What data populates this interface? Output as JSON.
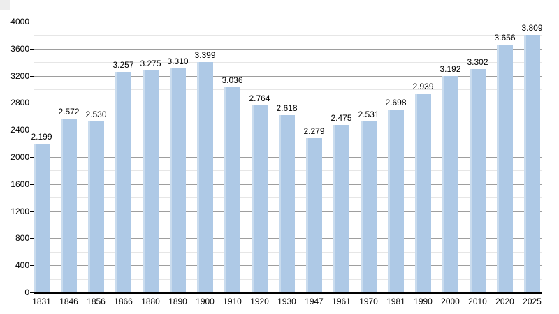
{
  "chart_data": {
    "type": "bar",
    "title": "",
    "xlabel": "",
    "ylabel": "",
    "categories": [
      "1831",
      "1846",
      "1856",
      "1866",
      "1880",
      "1890",
      "1900",
      "1910",
      "1920",
      "1930",
      "1947",
      "1961",
      "1970",
      "1981",
      "1990",
      "2000",
      "2010",
      "2020",
      "2025"
    ],
    "values": [
      2199,
      2572,
      2530,
      3257,
      3275,
      3310,
      3399,
      3036,
      2764,
      2618,
      2279,
      2475,
      2531,
      2698,
      2939,
      3192,
      3302,
      3656,
      3809
    ],
    "value_labels": [
      "2.199",
      "2.572",
      "2.530",
      "3.257",
      "3.275",
      "3.310",
      "3.399",
      "3.036",
      "2.764",
      "2.618",
      "2.279",
      "2.475",
      "2.531",
      "2.698",
      "2.939",
      "3.192",
      "3.302",
      "3.656",
      "3.809"
    ],
    "ylim": [
      0,
      4000
    ],
    "y_major_step": 400,
    "y_minor_step": 200,
    "y_tick_labels": [
      "0",
      "400",
      "800",
      "1200",
      "1600",
      "2000",
      "2400",
      "2800",
      "3200",
      "3600",
      "4000"
    ],
    "grid": true,
    "legend": false,
    "colors": {
      "bar_fill": "#aec9e6",
      "bar_highlight": "#cadcee",
      "major_gridline": "#9e9e9e",
      "minor_gridline": "#e6e6e6",
      "axis": "#000000",
      "label_text": "#000000",
      "background": "#ffffff",
      "corner_artifact": "#ededed"
    }
  }
}
